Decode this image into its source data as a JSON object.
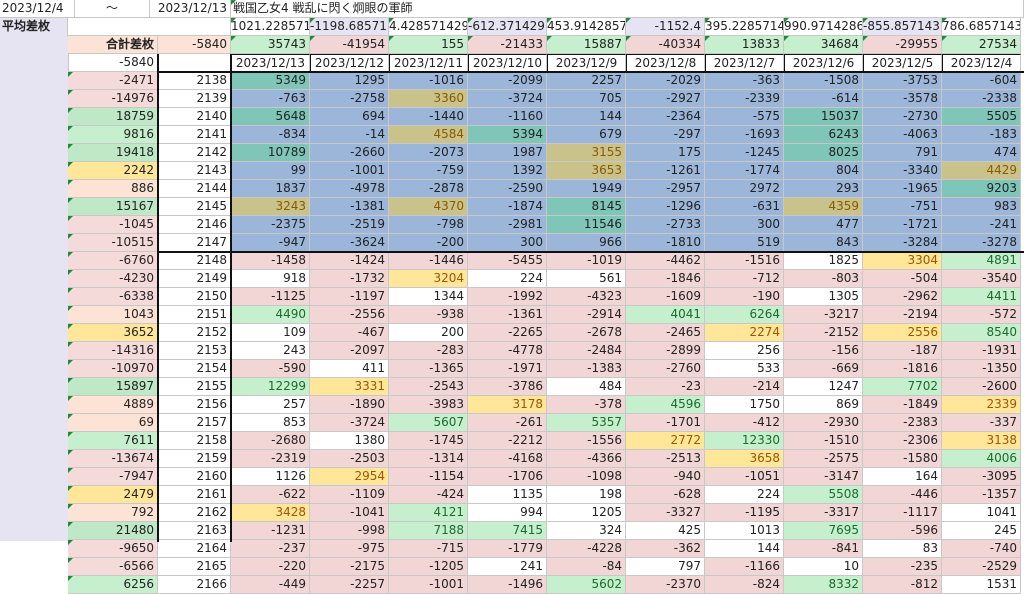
{
  "top": {
    "start_date": "2023/12/4",
    "tilde": "～",
    "end_date": "2023/12/13",
    "title": "戦国乙女4 戦乱に閃く炯眼の軍師"
  },
  "labels": {
    "avg_label": "平均差枚",
    "total_label": "合計差枚",
    "total_value": "-5840"
  },
  "averages": [
    "1021.228571",
    "-1198.68571",
    "4.428571429",
    "-612.371429",
    "453.9142857",
    "-1152.4",
    "395.2285714",
    "990.9714286",
    "-855.857143",
    "786.6857143"
  ],
  "totals": [
    "35743",
    "-41954",
    "155",
    "-21433",
    "15887",
    "-40334",
    "13833",
    "34684",
    "-29955",
    "27534"
  ],
  "dates": [
    "2023/12/13",
    "2023/12/12",
    "2023/12/11",
    "2023/12/10",
    "2023/12/9",
    "2023/12/8",
    "2023/12/7",
    "2023/12/6",
    "2023/12/5",
    "2023/12/4"
  ],
  "header_left_value": "-5840",
  "rows": [
    {
      "sum": "-2471",
      "id": "2138",
      "v": [
        "5349",
        "1295",
        "-1016",
        "-2099",
        "2257",
        "-2029",
        "-363",
        "-1508",
        "-3753",
        "-604"
      ]
    },
    {
      "sum": "-14976",
      "id": "2139",
      "v": [
        "-763",
        "-2758",
        "3360",
        "-3724",
        "705",
        "-2927",
        "-2339",
        "-614",
        "-3578",
        "-2338"
      ]
    },
    {
      "sum": "18759",
      "id": "2140",
      "v": [
        "5648",
        "694",
        "-1440",
        "-1160",
        "144",
        "-2364",
        "-575",
        "15037",
        "-2730",
        "5505"
      ]
    },
    {
      "sum": "9816",
      "id": "2141",
      "v": [
        "-834",
        "-14",
        "4584",
        "5394",
        "679",
        "-297",
        "-1693",
        "6243",
        "-4063",
        "-183"
      ]
    },
    {
      "sum": "19418",
      "id": "2142",
      "v": [
        "10789",
        "-2660",
        "-2073",
        "1987",
        "3155",
        "175",
        "-1245",
        "8025",
        "791",
        "474"
      ]
    },
    {
      "sum": "2242",
      "id": "2143",
      "v": [
        "99",
        "-1001",
        "-759",
        "1392",
        "3653",
        "-1261",
        "-1774",
        "804",
        "-3340",
        "4429"
      ]
    },
    {
      "sum": "886",
      "id": "2144",
      "v": [
        "1837",
        "-4978",
        "-2878",
        "-2590",
        "1949",
        "-2957",
        "2972",
        "293",
        "-1965",
        "9203"
      ]
    },
    {
      "sum": "15167",
      "id": "2145",
      "v": [
        "3243",
        "-1381",
        "4370",
        "-1874",
        "8145",
        "-1296",
        "-631",
        "4359",
        "-751",
        "983"
      ]
    },
    {
      "sum": "-1045",
      "id": "2146",
      "v": [
        "-2375",
        "-2519",
        "-798",
        "-2981",
        "11546",
        "-2733",
        "300",
        "477",
        "-1721",
        "-241"
      ]
    },
    {
      "sum": "-10515",
      "id": "2147",
      "v": [
        "-947",
        "-3624",
        "-200",
        "300",
        "966",
        "-1810",
        "519",
        "843",
        "-3284",
        "-3278"
      ]
    },
    {
      "sum": "-6760",
      "id": "2148",
      "v": [
        "-1458",
        "-1424",
        "-1446",
        "-5455",
        "-1019",
        "-4462",
        "-1516",
        "1825",
        "3304",
        "4891"
      ]
    },
    {
      "sum": "-4230",
      "id": "2149",
      "v": [
        "918",
        "-1732",
        "3204",
        "224",
        "561",
        "-1846",
        "-712",
        "-803",
        "-504",
        "-3540"
      ]
    },
    {
      "sum": "-6338",
      "id": "2150",
      "v": [
        "-1125",
        "-1197",
        "1344",
        "-1992",
        "-4323",
        "-1609",
        "-190",
        "1305",
        "-2962",
        "4411"
      ]
    },
    {
      "sum": "1043",
      "id": "2151",
      "v": [
        "4490",
        "-2556",
        "-938",
        "-1361",
        "-2914",
        "4041",
        "6264",
        "-3217",
        "-2194",
        "-572"
      ]
    },
    {
      "sum": "3652",
      "id": "2152",
      "v": [
        "109",
        "-467",
        "200",
        "-2265",
        "-2678",
        "-2465",
        "2274",
        "-2152",
        "2556",
        "8540"
      ]
    },
    {
      "sum": "-14316",
      "id": "2153",
      "v": [
        "243",
        "-2097",
        "-283",
        "-4778",
        "-2484",
        "-2899",
        "256",
        "-156",
        "-187",
        "-1931"
      ]
    },
    {
      "sum": "-10970",
      "id": "2154",
      "v": [
        "-590",
        "411",
        "-1365",
        "-1971",
        "-1383",
        "-2760",
        "533",
        "-669",
        "-1816",
        "-1350"
      ]
    },
    {
      "sum": "15897",
      "id": "2155",
      "v": [
        "12299",
        "3331",
        "-2543",
        "-3786",
        "484",
        "-23",
        "-214",
        "1247",
        "7702",
        "-2600"
      ]
    },
    {
      "sum": "4889",
      "id": "2156",
      "v": [
        "257",
        "-1890",
        "-3983",
        "3178",
        "-378",
        "4596",
        "1750",
        "869",
        "-1849",
        "2339"
      ]
    },
    {
      "sum": "69",
      "id": "2157",
      "v": [
        "853",
        "-3724",
        "5607",
        "-261",
        "5357",
        "-1701",
        "-412",
        "-2930",
        "-2383",
        "-337"
      ]
    },
    {
      "sum": "7611",
      "id": "2158",
      "v": [
        "-2680",
        "1380",
        "-1745",
        "-2212",
        "-1556",
        "2772",
        "12330",
        "-1510",
        "-2306",
        "3138"
      ]
    },
    {
      "sum": "-13674",
      "id": "2159",
      "v": [
        "-2319",
        "-2503",
        "-1314",
        "-4168",
        "-4366",
        "-2513",
        "3658",
        "-2575",
        "-1580",
        "4006"
      ]
    },
    {
      "sum": "-7947",
      "id": "2160",
      "v": [
        "1126",
        "2954",
        "-1154",
        "-1706",
        "-1098",
        "-940",
        "-1051",
        "-3147",
        "164",
        "-3095"
      ]
    },
    {
      "sum": "2479",
      "id": "2161",
      "v": [
        "-622",
        "-1109",
        "-424",
        "1135",
        "198",
        "-628",
        "224",
        "5508",
        "-446",
        "-1357"
      ]
    },
    {
      "sum": "792",
      "id": "2162",
      "v": [
        "3428",
        "-1041",
        "4121",
        "994",
        "1205",
        "-3327",
        "-1195",
        "-3317",
        "-1117",
        "1041"
      ]
    },
    {
      "sum": "21480",
      "id": "2163",
      "v": [
        "-1231",
        "-998",
        "7188",
        "7415",
        "324",
        "425",
        "1013",
        "7695",
        "-596",
        "245"
      ]
    },
    {
      "sum": "-9650",
      "id": "2164",
      "v": [
        "-237",
        "-975",
        "-715",
        "-1779",
        "-4228",
        "-362",
        "144",
        "-841",
        "83",
        "-740"
      ]
    },
    {
      "sum": "-6566",
      "id": "2165",
      "v": [
        "-220",
        "-2175",
        "-1205",
        "241",
        "-84",
        "797",
        "-1166",
        "10",
        "-235",
        "-2529"
      ]
    },
    {
      "sum": "6256",
      "id": "2166",
      "v": [
        "-449",
        "-2257",
        "-1001",
        "-1496",
        "5602",
        "-2370",
        "-824",
        "8332",
        "-812",
        "1531"
      ]
    }
  ],
  "colors": {
    "positive_green": "#c6efce",
    "strong_green": "#8fd8a8",
    "negative_pink": "#f2d6d6",
    "highlight_yellow": "#ffe699",
    "blue_block": "#9bb6d8",
    "sidebar": "#e6e4f3"
  }
}
